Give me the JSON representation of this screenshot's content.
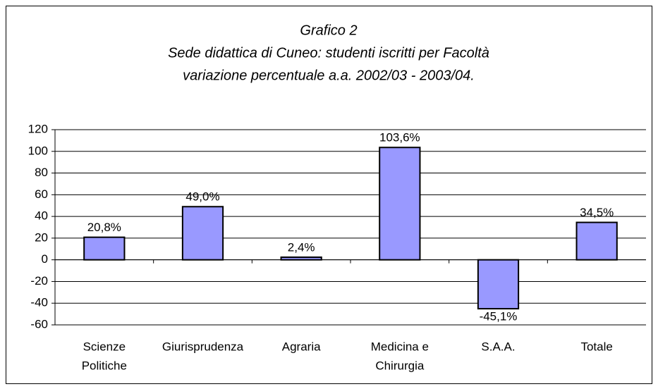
{
  "chart_data": {
    "type": "bar",
    "title": "Grafico 2",
    "subtitle": [
      "Sede didattica di Cuneo: studenti iscritti per Facoltà",
      "variazione percentuale a.a. 2002/03 - 2003/04."
    ],
    "categories": [
      [
        "Scienze",
        "Politiche"
      ],
      [
        "Giurisprudenza"
      ],
      [
        "Agraria"
      ],
      [
        "Medicina e",
        "Chirurgia"
      ],
      [
        "S.A.A."
      ],
      [
        "Totale"
      ]
    ],
    "values": [
      20.8,
      49.0,
      2.4,
      103.6,
      -45.1,
      34.5
    ],
    "value_labels": [
      "20,8%",
      "49,0%",
      "2,4%",
      "103,6%",
      "-45,1%",
      "34,5%"
    ],
    "color": "#9999ff",
    "ylim": [
      -60,
      120
    ],
    "yticks": [
      -60,
      -40,
      -20,
      0,
      20,
      40,
      60,
      80,
      100,
      120
    ],
    "grid": true
  }
}
